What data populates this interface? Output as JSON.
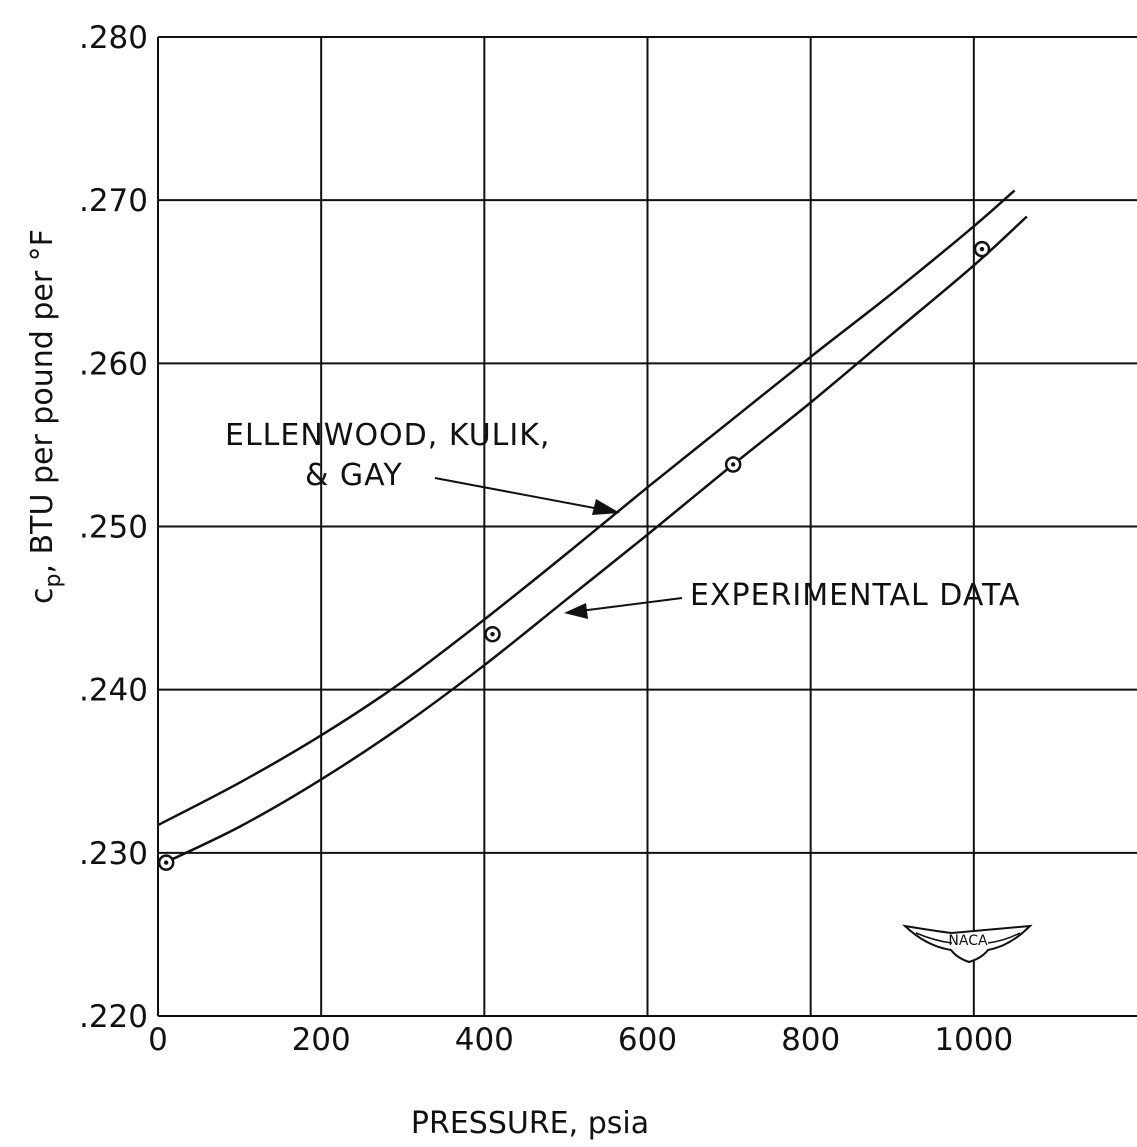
{
  "chart_data": {
    "type": "line",
    "xlabel": "PRESSURE, psia",
    "ylabel": "c",
    "ylabel_subscript": "p",
    "ylabel_rest": ",  BTU per pound per  °F",
    "x_ticks": [
      "0",
      "200",
      "400",
      "600",
      "800",
      "1000"
    ],
    "y_ticks": [
      ".220",
      ".230",
      ".240",
      ".250",
      ".260",
      ".270",
      ".280"
    ],
    "xlim": [
      0,
      1200
    ],
    "ylim": [
      0.22,
      0.28
    ],
    "grid": true,
    "series": [
      {
        "name": "ELLENWOOD, KULIK, & GAY",
        "x": [
          0,
          100,
          200,
          300,
          400,
          500,
          600,
          700,
          800,
          900,
          1000,
          1050
        ],
        "y": [
          0.2317,
          0.2343,
          0.2372,
          0.2405,
          0.2443,
          0.2483,
          0.2524,
          0.2564,
          0.2604,
          0.2643,
          0.2684,
          0.2706
        ]
      },
      {
        "name": "EXPERIMENTAL DATA",
        "x": [
          0,
          100,
          200,
          300,
          400,
          500,
          600,
          700,
          800,
          900,
          1000,
          1065
        ],
        "y": [
          0.2292,
          0.2316,
          0.2345,
          0.2378,
          0.2415,
          0.2455,
          0.2495,
          0.2536,
          0.2576,
          0.2618,
          0.266,
          0.269
        ],
        "points": {
          "x": [
            10,
            410,
            705,
            1010
          ],
          "y": [
            0.2294,
            0.2434,
            0.2538,
            0.267
          ]
        }
      }
    ],
    "annotations": {
      "ellenwood_line1": "ELLENWOOD, KULIK,",
      "ellenwood_line2": "& GAY",
      "experimental": "EXPERIMENTAL  DATA"
    }
  },
  "logo_text": "NACA"
}
